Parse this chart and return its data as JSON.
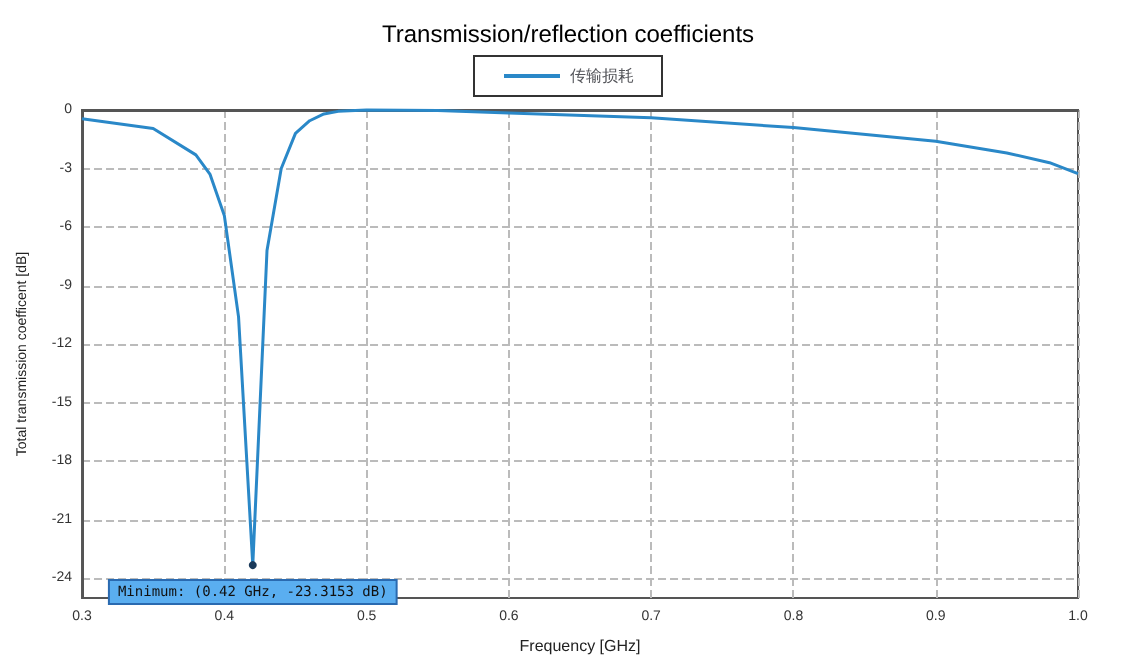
{
  "chart_data": {
    "type": "line",
    "title": "Transmission/reflection coefficients",
    "xlabel": "Frequency [GHz]",
    "ylabel": "Total transmission coefficent [dB]",
    "x": [
      0.3,
      0.35,
      0.38,
      0.39,
      0.4,
      0.41,
      0.42,
      0.43,
      0.44,
      0.45,
      0.46,
      0.47,
      0.48,
      0.5,
      0.55,
      0.6,
      0.7,
      0.8,
      0.9,
      0.95,
      0.98,
      1.0
    ],
    "series": [
      {
        "name": "传输损耗",
        "color": "#2a88c8",
        "values": [
          -0.45,
          -0.95,
          -2.3,
          -3.3,
          -5.4,
          -10.6,
          -23.3153,
          -7.2,
          -3.0,
          -1.2,
          -0.55,
          -0.2,
          -0.07,
          0,
          -0.02,
          -0.15,
          -0.4,
          -0.9,
          -1.6,
          -2.2,
          -2.7,
          -3.26
        ]
      }
    ],
    "annotations": [
      {
        "text": "Minimum: (0.42 GHz, -23.3153 dB)",
        "x": 0.42,
        "y": -23.3153
      }
    ],
    "xlim": [
      0.3,
      1.0
    ],
    "xticks": [
      0.3,
      0.4,
      0.5,
      0.6,
      0.7,
      0.8,
      0.9,
      {
        "value": 1.0,
        "label": "1.0"
      }
    ],
    "ylim": [
      -25,
      0
    ],
    "yticks": [
      -24,
      -21,
      -18,
      -15,
      -12,
      -9,
      -6,
      -3,
      0
    ],
    "grid": true,
    "legend": "top",
    "marker": "none",
    "line_style": "solid"
  }
}
